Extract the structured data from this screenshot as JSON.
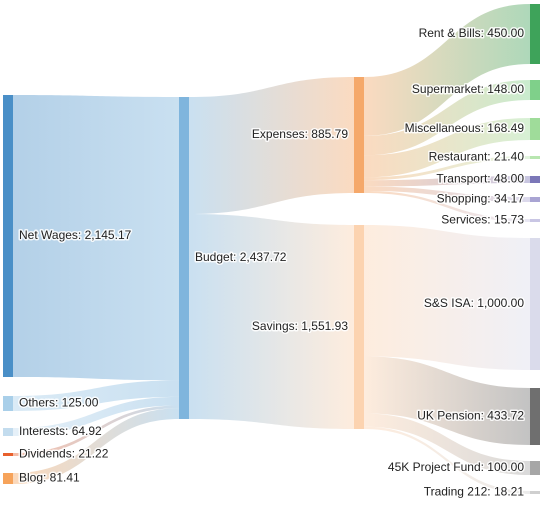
{
  "chart_data": {
    "type": "sankey",
    "nodes": [
      {
        "id": "net_wages",
        "label": "Net Wages: 2,145.17",
        "value": 2145.17,
        "color": "#4a8fc7"
      },
      {
        "id": "others",
        "label": "Others: 125.00",
        "value": 125.0,
        "color": "#a9cfe9"
      },
      {
        "id": "interests",
        "label": "Interests: 64.92",
        "value": 64.92,
        "color": "#c3dcee"
      },
      {
        "id": "dividends",
        "label": "Dividends: 21.22",
        "value": 21.22,
        "color": "#e8602c"
      },
      {
        "id": "blog",
        "label": "Blog: 81.41",
        "value": 81.41,
        "color": "#f6a35a"
      },
      {
        "id": "budget",
        "label": "Budget: 2,437.72",
        "value": 2437.72,
        "color": "#7fb5dd"
      },
      {
        "id": "expenses",
        "label": "Expenses: 885.79",
        "value": 885.79,
        "color": "#f5a86a"
      },
      {
        "id": "savings",
        "label": "Savings: 1,551.93",
        "value": 1551.93,
        "color": "#fcd3b0"
      },
      {
        "id": "rent",
        "label": "Rent & Bills: 450.00",
        "value": 450.0,
        "color": "#3ea35a"
      },
      {
        "id": "supermarket",
        "label": "Supermarket: 148.00",
        "value": 148.0,
        "color": "#7fd08a"
      },
      {
        "id": "misc",
        "label": "Miscellaneous: 168.49",
        "value": 168.49,
        "color": "#9fdc9a"
      },
      {
        "id": "restaurant",
        "label": "Restaurant: 21.40",
        "value": 21.4,
        "color": "#b8e6b0"
      },
      {
        "id": "transport",
        "label": "Transport: 48.00",
        "value": 48.0,
        "color": "#7b77b8"
      },
      {
        "id": "shopping",
        "label": "Shopping: 34.17",
        "value": 34.17,
        "color": "#a9a4d3"
      },
      {
        "id": "services",
        "label": "Services: 15.73",
        "value": 15.73,
        "color": "#c9c6e4"
      },
      {
        "id": "ss_isa",
        "label": "S&S ISA: 1,000.00",
        "value": 1000.0,
        "color": "#dadbeb"
      },
      {
        "id": "uk_pension",
        "label": "UK Pension: 433.72",
        "value": 433.72,
        "color": "#6f6f6f"
      },
      {
        "id": "project_fund",
        "label": "45K Project Fund: 100.00",
        "value": 100.0,
        "color": "#a6a6a6"
      },
      {
        "id": "trading212",
        "label": "Trading 212: 18.21",
        "value": 18.21,
        "color": "#cfcfcf"
      }
    ],
    "links": [
      {
        "source": "net_wages",
        "target": "budget",
        "value": 2145.17
      },
      {
        "source": "others",
        "target": "budget",
        "value": 125.0
      },
      {
        "source": "interests",
        "target": "budget",
        "value": 64.92
      },
      {
        "source": "dividends",
        "target": "budget",
        "value": 21.22
      },
      {
        "source": "blog",
        "target": "budget",
        "value": 81.41
      },
      {
        "source": "budget",
        "target": "expenses",
        "value": 885.79
      },
      {
        "source": "budget",
        "target": "savings",
        "value": 1551.93
      },
      {
        "source": "expenses",
        "target": "rent",
        "value": 450.0
      },
      {
        "source": "expenses",
        "target": "supermarket",
        "value": 148.0
      },
      {
        "source": "expenses",
        "target": "misc",
        "value": 168.49
      },
      {
        "source": "expenses",
        "target": "restaurant",
        "value": 21.4
      },
      {
        "source": "expenses",
        "target": "transport",
        "value": 48.0
      },
      {
        "source": "expenses",
        "target": "shopping",
        "value": 34.17
      },
      {
        "source": "expenses",
        "target": "services",
        "value": 15.73
      },
      {
        "source": "savings",
        "target": "ss_isa",
        "value": 1000.0
      },
      {
        "source": "savings",
        "target": "uk_pension",
        "value": 433.72
      },
      {
        "source": "savings",
        "target": "project_fund",
        "value": 100.0
      },
      {
        "source": "savings",
        "target": "trading212",
        "value": 18.21
      }
    ]
  }
}
